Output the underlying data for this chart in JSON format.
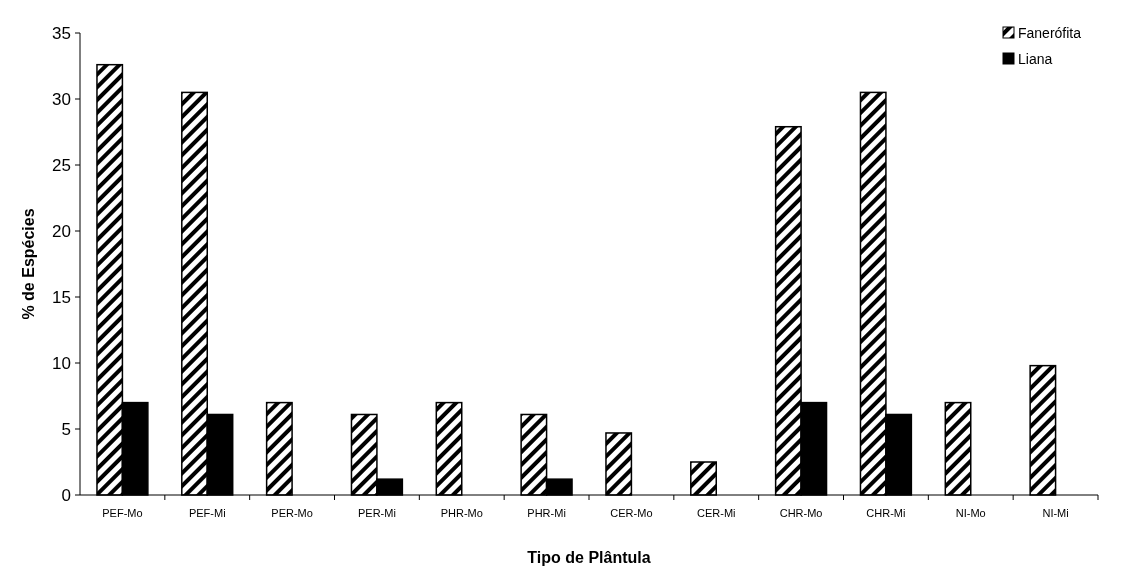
{
  "chart_data": {
    "type": "bar",
    "xlabel": "Tipo de Plântula",
    "ylabel": "% de Espécies",
    "categories": [
      "PEF-Mo",
      "PEF-Mi",
      "PER-Mo",
      "PER-Mi",
      "PHR-Mo",
      "PHR-Mi",
      "CER-Mo",
      "CER-Mi",
      "CHR-Mo",
      "CHR-Mi",
      "NI-Mo",
      "NI-Mi"
    ],
    "series": [
      {
        "name": "Fanerófita",
        "color": "#000000",
        "values": [
          32.6,
          30.5,
          7.0,
          6.1,
          7.0,
          6.1,
          4.7,
          2.5,
          27.9,
          30.5,
          7.0,
          9.8
        ]
      },
      {
        "name": "Liana",
        "color": "#000000",
        "values": [
          7.0,
          6.1,
          0,
          1.2,
          0,
          1.2,
          0,
          0,
          7.0,
          6.1,
          0,
          0
        ]
      }
    ],
    "ylim": [
      0,
      35
    ],
    "yticks": [
      0,
      5,
      10,
      15,
      20,
      25,
      30,
      35
    ],
    "grid": false,
    "legend": "top right"
  }
}
